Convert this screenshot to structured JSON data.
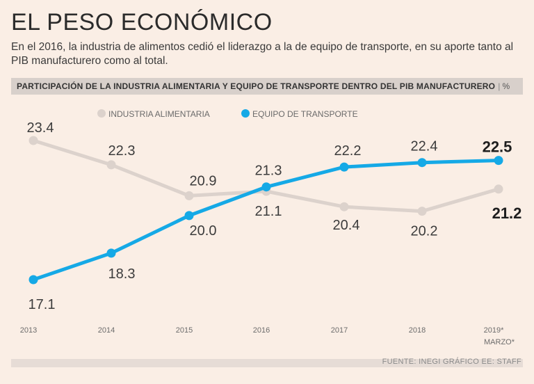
{
  "title": "EL PESO ECONÓMICO",
  "subtitle": "En el 2016, la industria de alimentos cedió el liderazgo a la de equipo de transporte, en su aporte tanto al PIB manufacturero como al total.",
  "band_label": "PARTICIPACIÓN DE LA INDUSTRIA ALIMENTARIA Y EQUIPO DE TRANSPORTE DENTRO DEL PIB MANUFACTURERO",
  "band_separator": "|",
  "band_unit": "%",
  "source": "FUENTE: INEGI GRÁFICO EE: STAFF",
  "colors": {
    "alimentaria": "#dcd2cc",
    "transporte": "#15a9e6"
  },
  "chart_data": {
    "type": "line",
    "categories": [
      "2013",
      "2014",
      "2015",
      "2016",
      "2017",
      "2018",
      "2019*"
    ],
    "category_notes": [
      "",
      "",
      "",
      "",
      "",
      "",
      "MARZO*"
    ],
    "ylim": [
      16.0,
      24.5
    ],
    "series": [
      {
        "name": "INDUSTRIA ALIMENTARIA",
        "key": "alimentaria",
        "values": [
          23.4,
          22.3,
          20.9,
          21.1,
          20.4,
          20.2,
          21.2
        ]
      },
      {
        "name": "EQUIPO DE TRANSPORTE",
        "key": "transporte",
        "values": [
          17.1,
          18.3,
          20.0,
          21.3,
          22.2,
          22.4,
          22.5
        ]
      }
    ],
    "labels": {
      "alimentaria": [
        "23.4",
        "22.3",
        "20.9",
        "21.1",
        "20.4",
        "20.2",
        "21.2"
      ],
      "transporte": [
        "17.1",
        "18.3",
        "20.0",
        "21.3",
        "22.2",
        "22.4",
        "22.5"
      ]
    }
  }
}
